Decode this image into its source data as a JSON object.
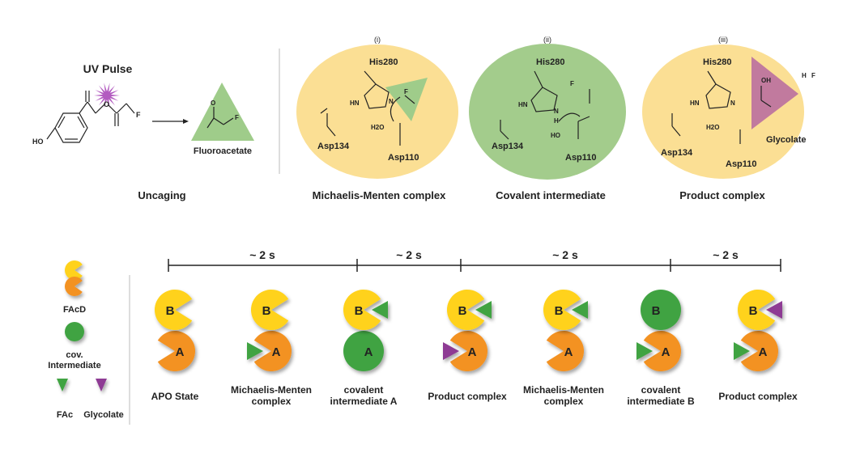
{
  "top": {
    "uncaging": {
      "uv_label": "UV Pulse",
      "compound_label": "Fluoroacetate",
      "stage_label": "Uncaging",
      "ho_label": "HO",
      "f_label": "F",
      "o_minus": "O"
    },
    "panels": [
      {
        "numeral": "(i)",
        "stage_label": "Michaelis-Menten complex",
        "his": "His280",
        "asp134": "Asp134",
        "asp110": "Asp110",
        "water": "H2O",
        "hn": "HN",
        "n": "N",
        "f": "F"
      },
      {
        "numeral": "(ii)",
        "stage_label": "Covalent intermediate",
        "his": "His280",
        "asp134": "Asp134",
        "asp110": "Asp110",
        "hn": "HN",
        "n": "N",
        "h": "H",
        "ho": "HO",
        "fminus": "F"
      },
      {
        "numeral": "(iii)",
        "stage_label": "Product complex",
        "his": "His280",
        "asp134": "Asp134",
        "asp110": "Asp110",
        "water": "H2O",
        "hn": "HN",
        "n": "N",
        "oh": "OH",
        "product": "Glycolate",
        "h_plus": "H",
        "f_minus": "F"
      }
    ]
  },
  "legend": {
    "facd_label": "FAcD",
    "cov_label_1": "cov.",
    "cov_label_2": "Intermediate",
    "fac_label": "FAc",
    "glycolate_label": "Glycolate"
  },
  "timeline": {
    "intervals": [
      "~ 2 s",
      "~ 2 s",
      "~ 2 s",
      "~ 2 s"
    ],
    "states": [
      {
        "line1": "APO State",
        "line2": "",
        "top": "B",
        "bottom": "A"
      },
      {
        "line1": "Michaelis-Menten",
        "line2": "complex",
        "top": "B",
        "bottom": "A"
      },
      {
        "line1": "covalent",
        "line2": "intermediate A",
        "top": "B",
        "bottom": "A"
      },
      {
        "line1": "Product complex",
        "line2": "",
        "top": "B",
        "bottom": "A"
      },
      {
        "line1": "Michaelis-Menten",
        "line2": "complex",
        "top": "B",
        "bottom": "A"
      },
      {
        "line1": "covalent",
        "line2": "intermediate B",
        "top": "B",
        "bottom": "A"
      },
      {
        "line1": "Product complex",
        "line2": "",
        "top": "B",
        "bottom": "A"
      }
    ]
  },
  "colors": {
    "yellow": "#FFD21A",
    "orange": "#F39224",
    "green": "#3FA342",
    "purple": "#8E3A94",
    "panel_yellow": "#FBDF94",
    "panel_green": "#A3CC8C",
    "fluoro_green": "#9FCC8A",
    "glycolate_mauve": "#C17A9E",
    "uv_star": "#B35BC0"
  }
}
